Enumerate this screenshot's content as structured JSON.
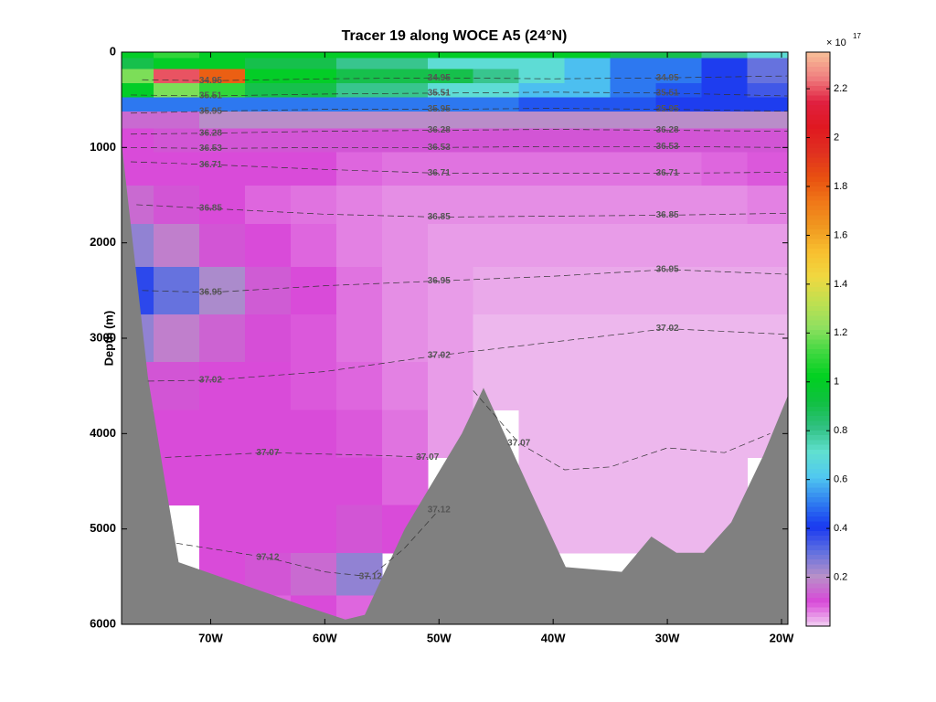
{
  "chart_data": {
    "type": "contour",
    "title": "Tracer 19 along WOCE A5 (24°N)",
    "ylabel": "Depth (m)",
    "xlim": [
      -77.8,
      -19.44
    ],
    "ylim": [
      0,
      6000
    ],
    "y_reversed": true,
    "xticks": [
      {
        "value": -70,
        "label": "70W"
      },
      {
        "value": -60,
        "label": "60W"
      },
      {
        "value": -50,
        "label": "50W"
      },
      {
        "value": -40,
        "label": "40W"
      },
      {
        "value": -30,
        "label": "30W"
      },
      {
        "value": -20,
        "label": "20W"
      }
    ],
    "yticks": [
      0,
      1000,
      2000,
      3000,
      4000,
      5000,
      6000
    ],
    "clim": [
      0,
      2.35
    ],
    "cticks": [
      0.2,
      0.4,
      0.6,
      0.8,
      1,
      1.2,
      1.4,
      1.6,
      1.8,
      2,
      2.2
    ],
    "colorbar_multiplier": "× 10",
    "colorbar_exponent": "17",
    "colormap": [
      "#f2d2f2",
      "#d848d8",
      "#b890c8",
      "#6070e0",
      "#1838f0",
      "#3080f0",
      "#50c8f0",
      "#60e0d0",
      "#30c080",
      "#10c040",
      "#00d020",
      "#40d840",
      "#90e060",
      "#c0e050",
      "#f0d840",
      "#f8c030",
      "#f09820",
      "#f07818",
      "#e85010",
      "#e03020",
      "#e01820",
      "#e02040",
      "#f08080",
      "#f8c098"
    ],
    "bottom_color": "#808080",
    "field": {
      "x": [
        -77,
        -73,
        -69,
        -65,
        -61,
        -57,
        -53,
        -49,
        -45,
        -41,
        -37,
        -33,
        -29,
        -25,
        -21
      ],
      "depth": [
        25,
        100,
        250,
        400,
        550,
        700,
        900,
        1200,
        1600,
        2000,
        2500,
        3000,
        3500,
        4000,
        4500,
        5000,
        5500,
        5900
      ],
      "values": [
        [
          1.0,
          1.1,
          1.0,
          1.0,
          1.0,
          1.0,
          1.0,
          1.0,
          1.0,
          1.0,
          1.0,
          0.9,
          0.9,
          0.8,
          0.7
        ],
        [
          0.9,
          1.0,
          1.0,
          0.9,
          0.9,
          0.8,
          0.8,
          0.7,
          0.7,
          0.7,
          0.6,
          0.5,
          0.5,
          0.4,
          0.3
        ],
        [
          1.2,
          2.2,
          1.8,
          1.0,
          1.0,
          0.9,
          0.9,
          0.9,
          0.8,
          0.7,
          0.6,
          0.5,
          0.5,
          0.4,
          0.3
        ],
        [
          1.0,
          1.2,
          1.1,
          0.9,
          0.9,
          0.8,
          0.8,
          0.7,
          0.7,
          0.6,
          0.6,
          0.5,
          0.45,
          0.4,
          0.35
        ],
        [
          0.5,
          0.5,
          0.5,
          0.5,
          0.5,
          0.5,
          0.5,
          0.5,
          0.5,
          0.45,
          0.45,
          0.45,
          0.4,
          0.4,
          0.4
        ],
        [
          0.15,
          0.15,
          0.2,
          0.2,
          0.2,
          0.2,
          0.2,
          0.2,
          0.2,
          0.2,
          0.2,
          0.2,
          0.2,
          0.2,
          0.2
        ],
        [
          0.1,
          0.12,
          0.12,
          0.12,
          0.12,
          0.12,
          0.12,
          0.12,
          0.12,
          0.12,
          0.12,
          0.12,
          0.12,
          0.12,
          0.12
        ],
        [
          0.1,
          0.1,
          0.1,
          0.1,
          0.1,
          0.08,
          0.07,
          0.07,
          0.07,
          0.07,
          0.07,
          0.07,
          0.07,
          0.08,
          0.09
        ],
        [
          0.15,
          0.12,
          0.1,
          0.08,
          0.07,
          0.06,
          0.05,
          0.05,
          0.05,
          0.05,
          0.05,
          0.05,
          0.05,
          0.05,
          0.06
        ],
        [
          0.25,
          0.18,
          0.12,
          0.1,
          0.08,
          0.06,
          0.05,
          0.04,
          0.04,
          0.04,
          0.04,
          0.04,
          0.04,
          0.04,
          0.04
        ],
        [
          0.38,
          0.3,
          0.22,
          0.13,
          0.1,
          0.07,
          0.05,
          0.04,
          0.03,
          0.03,
          0.03,
          0.03,
          0.03,
          0.03,
          0.03
        ],
        [
          0.25,
          0.18,
          0.14,
          0.11,
          0.09,
          0.07,
          0.05,
          0.04,
          0.02,
          0.02,
          0.02,
          0.02,
          0.02,
          0.02,
          0.02
        ],
        [
          0.12,
          0.12,
          0.1,
          0.1,
          0.09,
          0.08,
          0.06,
          0.04,
          0.02,
          0.02,
          0.02,
          0.02,
          0.02,
          0.02,
          0.02
        ],
        [
          null,
          0.1,
          0.1,
          0.1,
          0.1,
          0.09,
          0.07,
          0.04,
          null,
          0.02,
          0.02,
          0.02,
          0.02,
          0.02,
          0.02
        ],
        [
          null,
          0.1,
          0.1,
          0.1,
          0.1,
          0.1,
          0.08,
          null,
          null,
          0.02,
          0.02,
          0.02,
          0.02,
          0.02,
          null
        ],
        [
          null,
          null,
          0.1,
          0.1,
          0.1,
          0.12,
          0.1,
          null,
          null,
          0.02,
          0.02,
          0.02,
          0.02,
          0.02,
          null
        ],
        [
          null,
          null,
          0.1,
          0.12,
          0.15,
          0.25,
          null,
          null,
          null,
          null,
          null,
          null,
          null,
          null,
          null
        ],
        [
          null,
          null,
          null,
          0.08,
          0.1,
          0.08,
          null,
          null,
          null,
          null,
          null,
          null,
          null,
          null,
          null
        ]
      ]
    },
    "bathymetry": {
      "x": [
        -77.8,
        -75.5,
        -74,
        -72.8,
        -68,
        -62,
        -58.2,
        -56.5,
        -53,
        -48,
        -46.1,
        -42,
        -38.9,
        -34,
        -31.4,
        -29.2,
        -26.8,
        -24.4,
        -21.6,
        -19.44
      ],
      "depth": [
        950,
        3400,
        4500,
        5350,
        5550,
        5800,
        5950,
        5900,
        5000,
        4000,
        3520,
        4600,
        5400,
        5450,
        5080,
        5250,
        5250,
        4930,
        4230,
        3600
      ]
    },
    "contours": [
      {
        "level": 34.95,
        "x": [
          -76,
          -70,
          -60,
          -50,
          -40,
          -30,
          -19.5
        ],
        "depth": [
          290,
          300,
          280,
          270,
          280,
          270,
          250
        ]
      },
      {
        "level": 35.51,
        "x": [
          -77,
          -70,
          -60,
          -50,
          -40,
          -30,
          -19.5
        ],
        "depth": [
          450,
          460,
          440,
          430,
          420,
          430,
          460
        ]
      },
      {
        "level": 35.95,
        "x": [
          -77,
          -70,
          -60,
          -50,
          -40,
          -30,
          -19.5
        ],
        "depth": [
          640,
          620,
          600,
          600,
          590,
          600,
          620
        ]
      },
      {
        "level": 36.28,
        "x": [
          -77,
          -70,
          -60,
          -50,
          -40,
          -30,
          -19.5
        ],
        "depth": [
          860,
          850,
          830,
          820,
          810,
          820,
          830
        ]
      },
      {
        "level": 36.53,
        "x": [
          -77,
          -70,
          -60,
          -50,
          -40,
          -30,
          -19.5
        ],
        "depth": [
          1000,
          1010,
          1000,
          1000,
          990,
          990,
          1000
        ]
      },
      {
        "level": 36.71,
        "x": [
          -77,
          -70,
          -60,
          -50,
          -40,
          -30,
          -19.5
        ],
        "depth": [
          1150,
          1180,
          1230,
          1270,
          1270,
          1270,
          1260
        ]
      },
      {
        "level": 36.85,
        "x": [
          -76.5,
          -70,
          -60,
          -50,
          -40,
          -30,
          -19.5
        ],
        "depth": [
          1600,
          1640,
          1700,
          1730,
          1720,
          1710,
          1690
        ]
      },
      {
        "level": 36.95,
        "x": [
          -76,
          -70,
          -60,
          -50,
          -40,
          -30,
          -19.5
        ],
        "depth": [
          2500,
          2520,
          2450,
          2400,
          2350,
          2280,
          2330
        ]
      },
      {
        "level": 37.02,
        "x": [
          -75.5,
          -70,
          -60,
          -50,
          -40,
          -30,
          -19.5
        ],
        "depth": [
          3450,
          3440,
          3350,
          3180,
          3040,
          2900,
          2960
        ]
      },
      {
        "level": 37.07,
        "x": [
          -74,
          -65,
          -55,
          -51,
          null,
          -47,
          -43,
          -39,
          -35,
          -30,
          -25,
          -21
        ],
        "depth": [
          4250,
          4200,
          4230,
          4250,
          null,
          3550,
          4100,
          4380,
          4350,
          4150,
          4200,
          4000
        ]
      },
      {
        "level": 37.12,
        "x": [
          -73,
          -65,
          -60,
          -56,
          -53,
          -50
        ],
        "depth": [
          5150,
          5300,
          5450,
          5500,
          5200,
          4800
        ]
      }
    ]
  }
}
